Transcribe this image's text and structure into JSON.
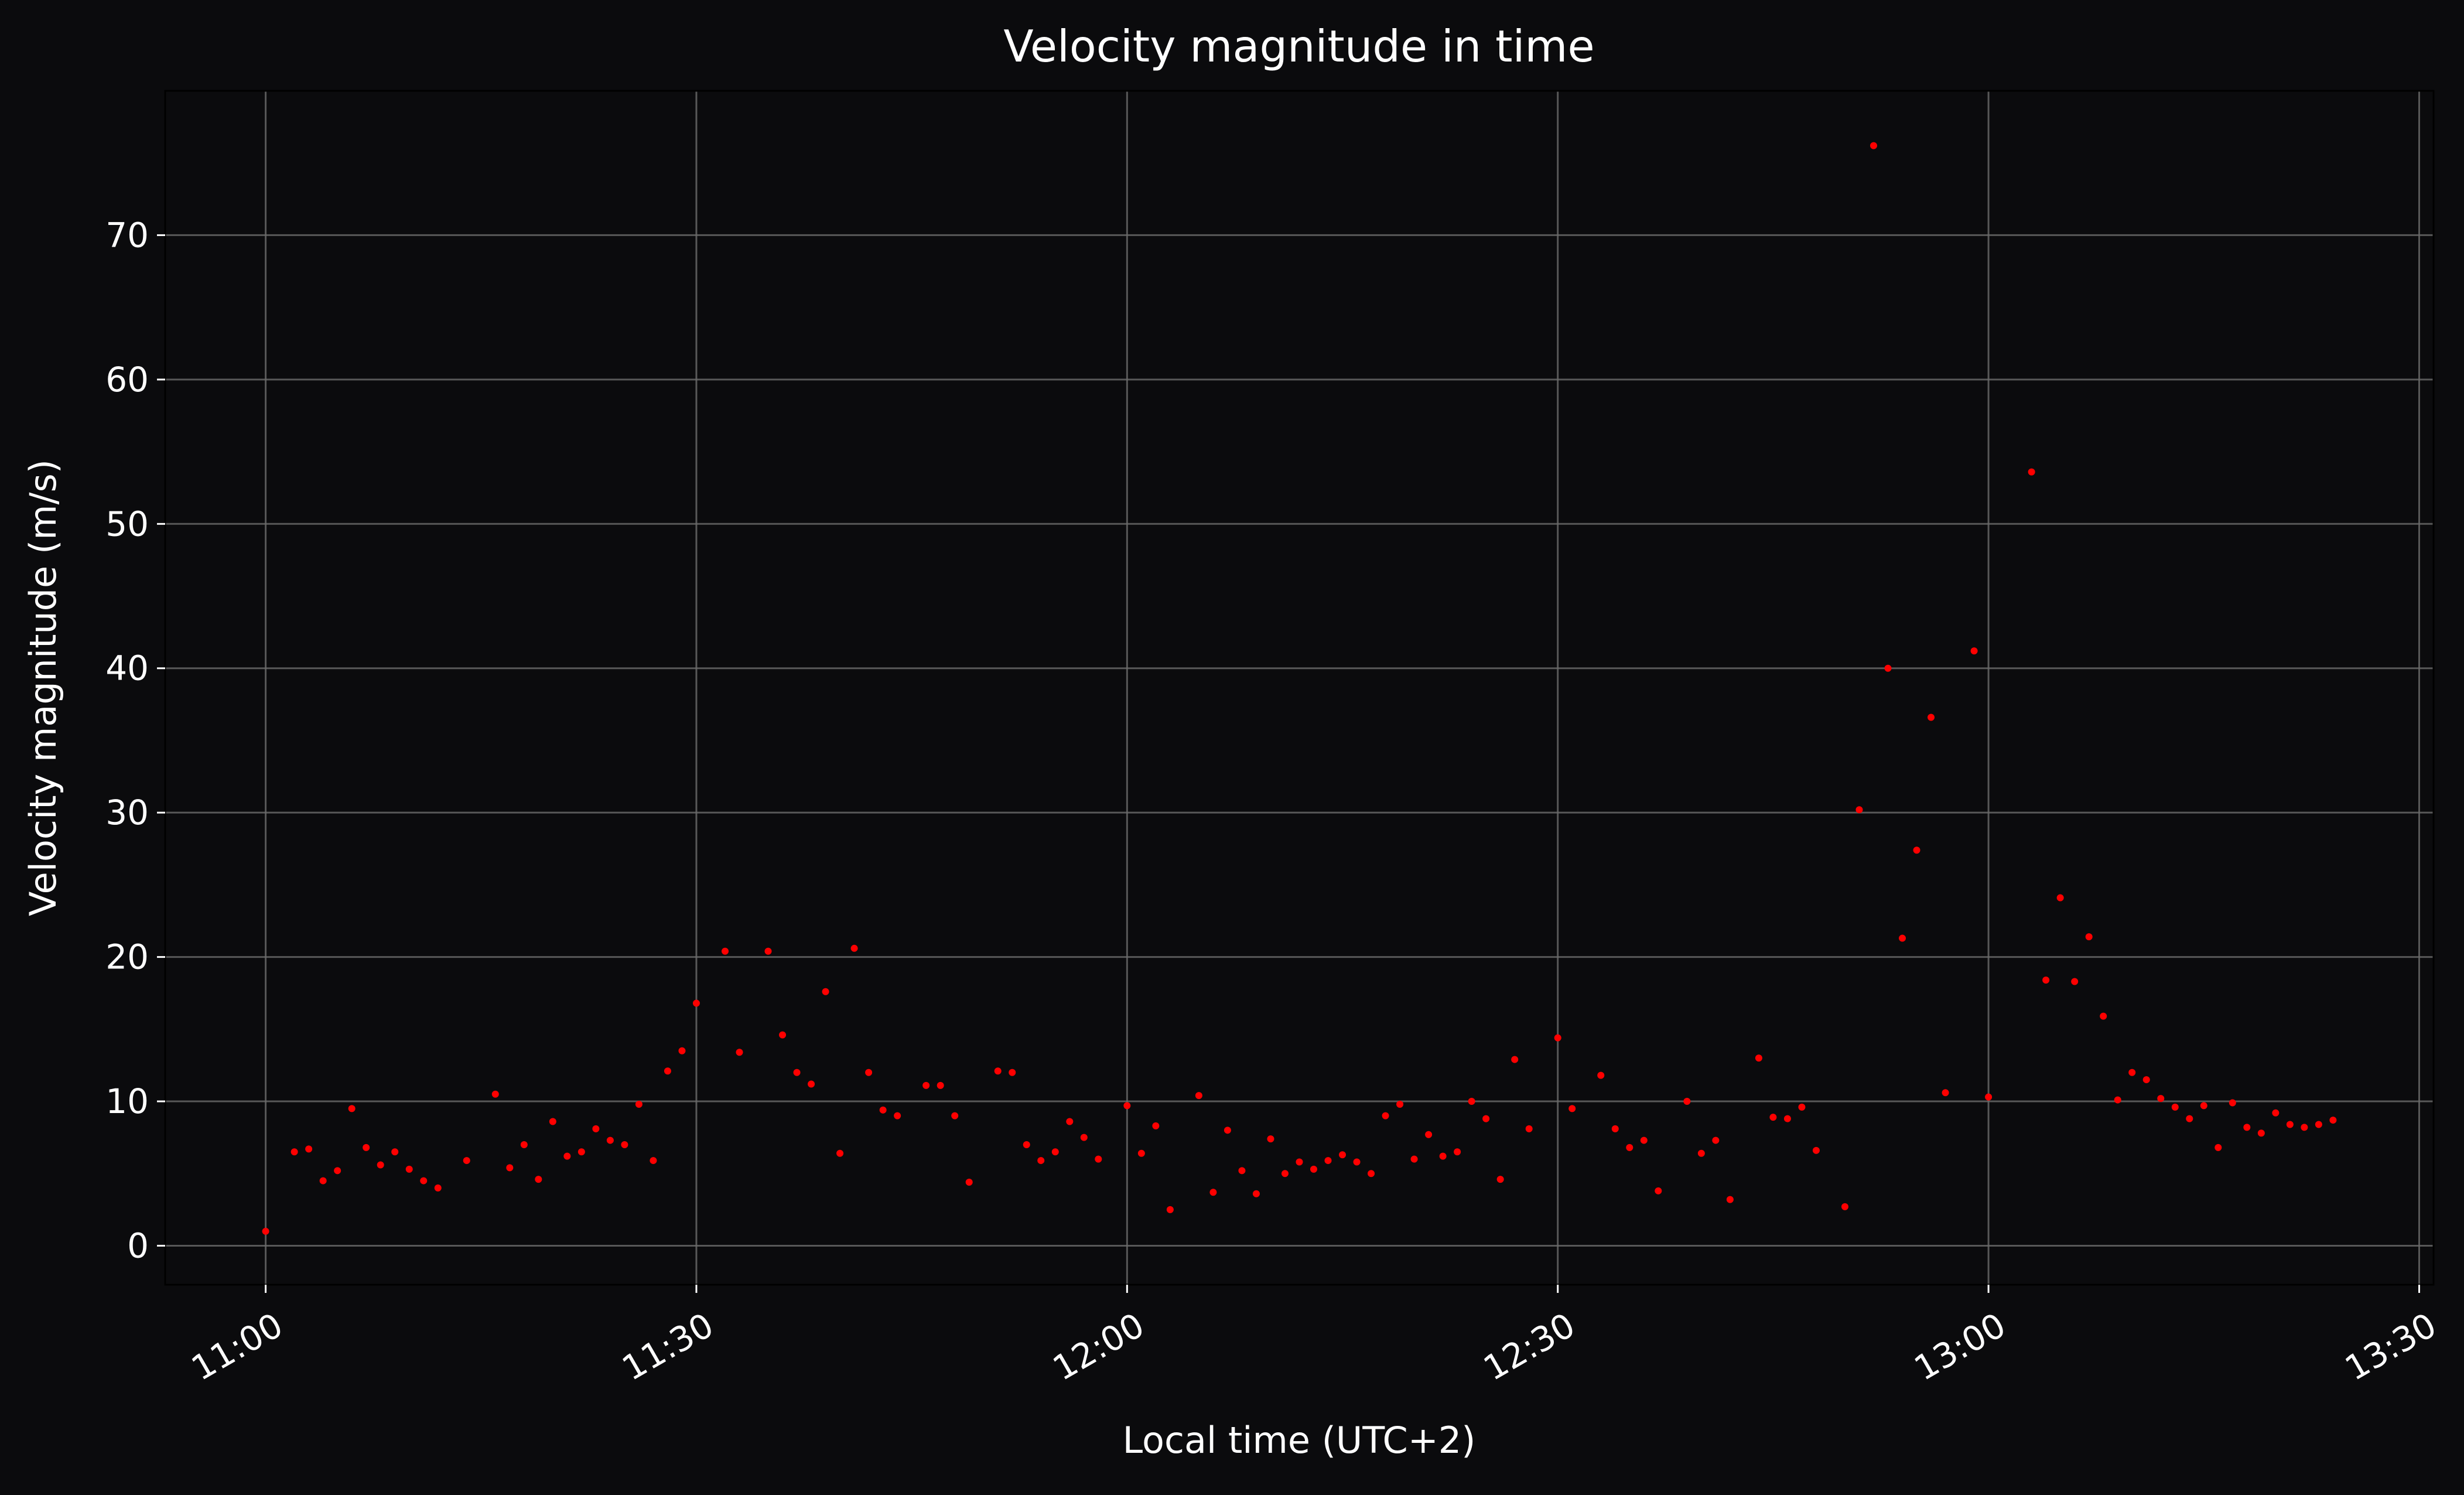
{
  "chart_data": {
    "type": "scatter",
    "title": "Velocity magnitude in time",
    "xlabel": "Local time (UTC+2)",
    "ylabel": "Velocity magnitude (m/s)",
    "xlim": [
      "10:53",
      "13:31"
    ],
    "ylim": [
      -2.7,
      80
    ],
    "xticks": [
      "11:00",
      "11:30",
      "12:00",
      "12:30",
      "13:00",
      "13:30"
    ],
    "yticks": [
      0,
      10,
      20,
      30,
      40,
      50,
      60,
      70
    ],
    "grid": true,
    "legend": "none",
    "colors": {
      "background": "#0b0b0d",
      "points": "#ff0000",
      "grid": "#6b6b6b",
      "text": "#ffffff",
      "axes": "#000000"
    },
    "series": [
      {
        "x": [
          "11:00",
          "11:02",
          "11:03",
          "11:04",
          "11:05",
          "11:06",
          "11:07",
          "11:08",
          "11:09",
          "11:10",
          "11:11",
          "11:12",
          "11:14",
          "11:16",
          "11:17",
          "11:18",
          "11:19",
          "11:20",
          "11:21",
          "11:22",
          "11:23",
          "11:24",
          "11:25",
          "11:26",
          "11:27",
          "11:28",
          "11:29",
          "11:30",
          "11:32",
          "11:33",
          "11:35",
          "11:36",
          "11:37",
          "11:38",
          "11:39",
          "11:40",
          "11:41",
          "11:42",
          "11:43",
          "11:44",
          "11:46",
          "11:47",
          "11:48",
          "11:49",
          "11:51",
          "11:52",
          "11:53",
          "11:54",
          "11:55",
          "11:56",
          "11:57",
          "11:58",
          "12:00",
          "12:01",
          "12:02",
          "12:03",
          "12:05",
          "12:06",
          "12:07",
          "12:08",
          "12:09",
          "12:10",
          "12:11",
          "12:12",
          "12:13",
          "12:14",
          "12:15",
          "12:16",
          "12:17",
          "12:18",
          "12:19",
          "12:20",
          "12:21",
          "12:22",
          "12:23",
          "12:24",
          "12:25",
          "12:26",
          "12:27",
          "12:28",
          "12:30",
          "12:31",
          "12:33",
          "12:34",
          "12:35",
          "12:36",
          "12:37",
          "12:39",
          "12:40",
          "12:41",
          "12:42",
          "12:44",
          "12:45",
          "12:46",
          "12:47",
          "12:48",
          "12:50",
          "12:51",
          "12:52",
          "12:53",
          "12:54",
          "12:55",
          "12:56",
          "12:57",
          "12:59",
          "13:00",
          "13:03",
          "13:04",
          "13:05",
          "13:06",
          "13:07",
          "13:08",
          "13:09",
          "13:10",
          "13:11",
          "13:12",
          "13:13",
          "13:14",
          "13:15",
          "13:16",
          "13:17",
          "13:18",
          "13:19",
          "13:20",
          "13:21",
          "13:22",
          "13:23",
          "13:24"
        ],
        "y": [
          1.0,
          6.5,
          6.7,
          4.5,
          5.2,
          9.5,
          6.8,
          5.6,
          6.5,
          5.3,
          4.5,
          4.0,
          5.9,
          10.5,
          5.4,
          7.0,
          4.6,
          8.6,
          6.2,
          6.5,
          8.1,
          7.3,
          7.0,
          9.8,
          5.9,
          12.1,
          13.5,
          16.8,
          20.4,
          13.4,
          20.4,
          14.6,
          12.0,
          11.2,
          17.6,
          6.4,
          20.6,
          12.0,
          9.4,
          9.0,
          11.1,
          11.1,
          9.0,
          4.4,
          12.1,
          12.0,
          7.0,
          5.9,
          6.5,
          8.6,
          7.5,
          6.0,
          9.7,
          6.4,
          8.3,
          2.5,
          10.4,
          3.7,
          8.0,
          5.2,
          3.6,
          7.4,
          5.0,
          5.8,
          5.3,
          5.9,
          6.3,
          5.8,
          5.0,
          9.0,
          9.8,
          6.0,
          7.7,
          6.2,
          6.5,
          10.0,
          8.8,
          4.6,
          12.9,
          8.1,
          14.4,
          9.5,
          11.8,
          8.1,
          6.8,
          7.3,
          3.8,
          10.0,
          6.4,
          7.3,
          3.2,
          13.0,
          8.9,
          8.8,
          9.6,
          6.6,
          2.7,
          30.2,
          76.2,
          40.0,
          21.3,
          27.4,
          36.6,
          10.6,
          41.2,
          10.3,
          53.6,
          18.4,
          24.1,
          18.3,
          21.4,
          15.9,
          10.1,
          12.0,
          11.5,
          10.2,
          9.6,
          8.8,
          9.7,
          6.8,
          9.9,
          8.2,
          7.8,
          9.2,
          8.4,
          8.2,
          8.4,
          8.7
        ]
      }
    ]
  }
}
